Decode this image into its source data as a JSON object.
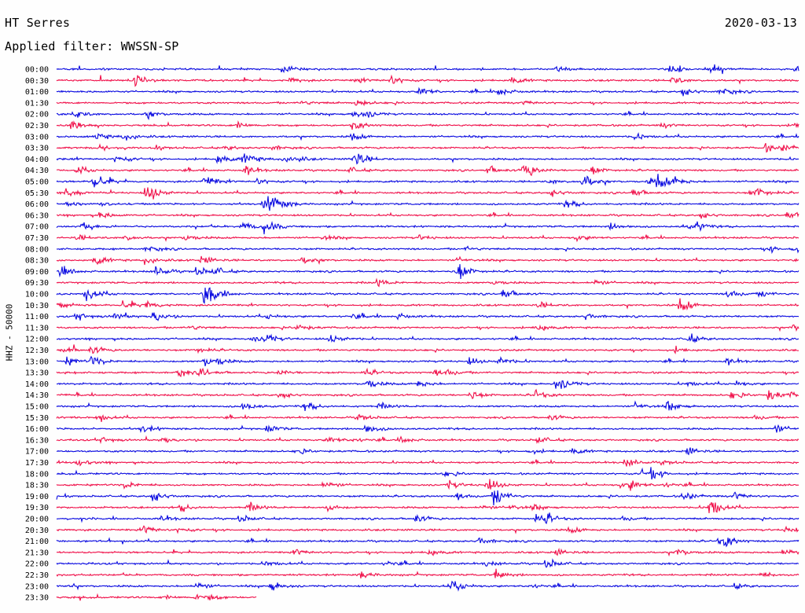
{
  "header": {
    "station": "HT Serres",
    "date": "2020-03-13",
    "filter": "Applied filter: WWSSN-SP"
  },
  "chart_data": {
    "type": "line",
    "title": "HT Serres",
    "subtitle": "Applied filter: WWSSN-SP",
    "date": "2020-03-13",
    "ylabel": "HHZ - 50000",
    "xlabel": "",
    "row_labels": [
      "00:00",
      "00:30",
      "01:00",
      "01:30",
      "02:00",
      "02:30",
      "03:00",
      "03:30",
      "04:00",
      "04:30",
      "05:00",
      "05:30",
      "06:00",
      "06:30",
      "07:00",
      "07:30",
      "08:00",
      "08:30",
      "09:00",
      "09:30",
      "10:00",
      "10:30",
      "11:00",
      "11:30",
      "12:00",
      "12:30",
      "13:00",
      "13:30",
      "14:00",
      "14:30",
      "15:00",
      "15:30",
      "16:00",
      "16:30",
      "17:00",
      "17:30",
      "18:00",
      "18:30",
      "19:00",
      "19:30",
      "20:00",
      "20:30",
      "21:00",
      "21:30",
      "22:00",
      "22:30",
      "23:00",
      "23:30"
    ],
    "trace_colors": [
      "#0a0ae0",
      "#f0104a"
    ],
    "last_row_fraction": 0.27,
    "events": [
      {
        "row": "04:00",
        "t": 0.4,
        "amp": 1.2
      },
      {
        "row": "04:30",
        "t": 0.63,
        "amp": 1.0
      },
      {
        "row": "05:00",
        "t": 0.05,
        "amp": 1.0
      },
      {
        "row": "05:00",
        "t": 0.71,
        "amp": 0.9
      },
      {
        "row": "05:00",
        "t": 0.81,
        "amp": 0.9
      },
      {
        "row": "05:30",
        "t": 0.12,
        "amp": 0.8
      },
      {
        "row": "06:00",
        "t": 0.28,
        "amp": 1.1
      },
      {
        "row": "07:00",
        "t": 0.28,
        "amp": 0.9
      },
      {
        "row": "09:00",
        "t": 0.54,
        "amp": 1.3
      },
      {
        "row": "10:00",
        "t": 0.04,
        "amp": 1.0
      },
      {
        "row": "10:00",
        "t": 0.2,
        "amp": 1.6
      },
      {
        "row": "10:30",
        "t": 0.84,
        "amp": 0.9
      },
      {
        "row": "11:00",
        "t": 0.13,
        "amp": 0.8
      },
      {
        "row": "12:00",
        "t": 0.28,
        "amp": 0.6
      },
      {
        "row": "13:00",
        "t": 0.2,
        "amp": 0.6
      },
      {
        "row": "14:30",
        "t": 0.96,
        "amp": 0.7
      },
      {
        "row": "18:30",
        "t": 0.58,
        "amp": 0.9
      },
      {
        "row": "19:00",
        "t": 0.59,
        "amp": 1.3
      },
      {
        "row": "19:00",
        "t": 0.13,
        "amp": 0.7
      },
      {
        "row": "19:30",
        "t": 0.88,
        "amp": 1.4
      },
      {
        "row": "21:30",
        "t": 0.98,
        "amp": 0.6
      },
      {
        "row": "22:00",
        "t": 0.66,
        "amp": 0.6
      }
    ]
  }
}
